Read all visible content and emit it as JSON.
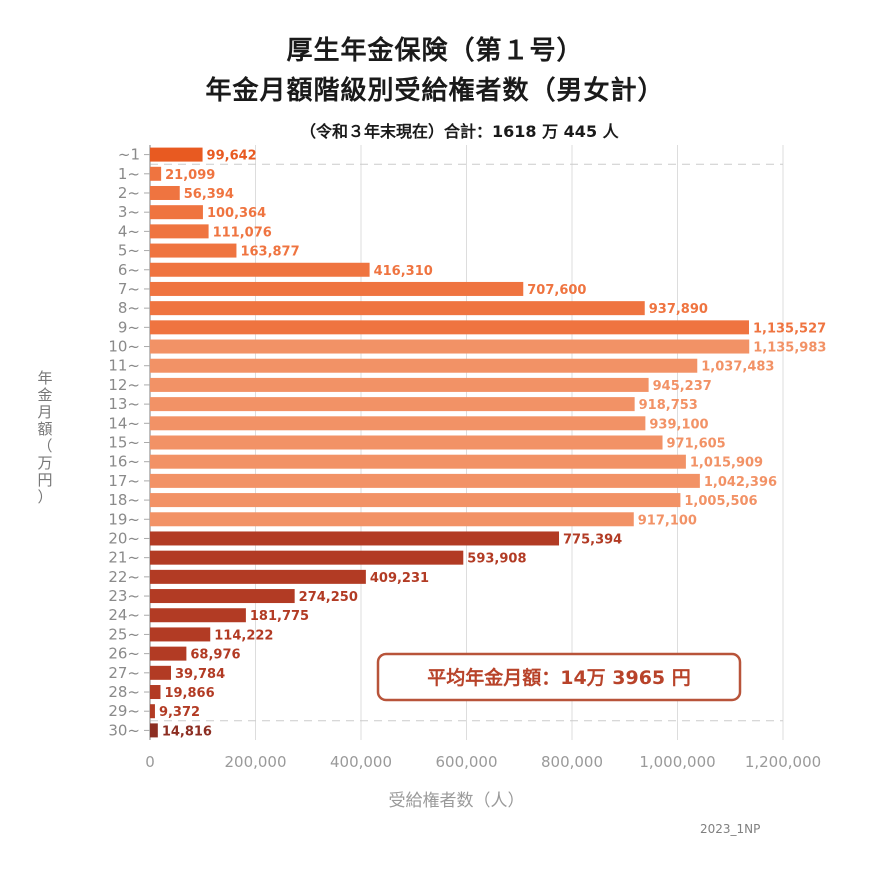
{
  "header": {
    "title_line1": "厚生年金保険（第１号）",
    "title_line2": "年金月額階級別受給権者数（男女計）",
    "subtitle": "（令和３年末現在）合計：1618 万 445 人"
  },
  "credit": "2023_1NP",
  "callout": "平均年金月額：14万 3965 円",
  "colors": {
    "early": "#e85a21",
    "group1": "#ef7440",
    "group2": "#f29266",
    "group3": "#b23b24",
    "group4": "#8c2e22"
  },
  "chart_data": {
    "type": "bar",
    "orientation": "horizontal",
    "title": "厚生年金保険（第１号） 年金月額階級別受給権者数（男女計）",
    "xlabel": "受給権者数（人）",
    "ylabel": "年金月額（万円）",
    "xlim": [
      0,
      1200000
    ],
    "xticks": [
      0,
      200000,
      400000,
      600000,
      800000,
      1000000,
      1200000
    ],
    "xtick_labels": [
      "0",
      "200,000",
      "400,000",
      "600,000",
      "800,000",
      "1,000,000",
      "1,200,000"
    ],
    "grid": "vertical",
    "categories": [
      "~1",
      "1~",
      "2~",
      "3~",
      "4~",
      "5~",
      "6~",
      "7~",
      "8~",
      "9~",
      "10~",
      "11~",
      "12~",
      "13~",
      "14~",
      "15~",
      "16~",
      "17~",
      "18~",
      "19~",
      "20~",
      "21~",
      "22~",
      "23~",
      "24~",
      "25~",
      "26~",
      "27~",
      "28~",
      "29~",
      "30~"
    ],
    "values": [
      99642,
      21099,
      56394,
      100364,
      111076,
      163877,
      416310,
      707600,
      937890,
      1135527,
      1135983,
      1037483,
      945237,
      918753,
      939100,
      971605,
      1015909,
      1042396,
      1005506,
      917100,
      775394,
      593908,
      409231,
      274250,
      181775,
      114222,
      68976,
      39784,
      19866,
      9372,
      14816
    ],
    "value_labels": [
      "99,642",
      "21,099",
      "56,394",
      "100,364",
      "111,076",
      "163,877",
      "416,310",
      "707,600",
      "937,890",
      "1,135,527",
      "1,135,983",
      "1,037,483",
      "945,237",
      "918,753",
      "939,100",
      "971,605",
      "1,015,909",
      "1,042,396",
      "1,005,506",
      "917,100",
      "775,394",
      "593,908",
      "409,231",
      "274,250",
      "181,775",
      "114,222",
      "68,976",
      "39,784",
      "19,866",
      "9,372",
      "14,816"
    ],
    "bar_colors": [
      "#e85a21",
      "#ef7440",
      "#ef7440",
      "#ef7440",
      "#ef7440",
      "#ef7440",
      "#ef7440",
      "#ef7440",
      "#ef7440",
      "#ef7440",
      "#f29266",
      "#f29266",
      "#f29266",
      "#f29266",
      "#f29266",
      "#f29266",
      "#f29266",
      "#f29266",
      "#f29266",
      "#f29266",
      "#b23b24",
      "#b23b24",
      "#b23b24",
      "#b23b24",
      "#b23b24",
      "#b23b24",
      "#b23b24",
      "#b23b24",
      "#b23b24",
      "#b23b24",
      "#8c2e22"
    ],
    "label_colors": [
      "#e85a21",
      "#ef7440",
      "#ef7440",
      "#ef7440",
      "#ef7440",
      "#ef7440",
      "#ef7440",
      "#ef7440",
      "#ef7440",
      "#ef7440",
      "#f29266",
      "#f29266",
      "#f29266",
      "#f29266",
      "#f29266",
      "#f29266",
      "#f29266",
      "#f29266",
      "#f29266",
      "#f29266",
      "#b23b24",
      "#b23b24",
      "#b23b24",
      "#b23b24",
      "#b23b24",
      "#b23b24",
      "#b23b24",
      "#b23b24",
      "#b23b24",
      "#b23b24",
      "#8c2e22"
    ]
  }
}
